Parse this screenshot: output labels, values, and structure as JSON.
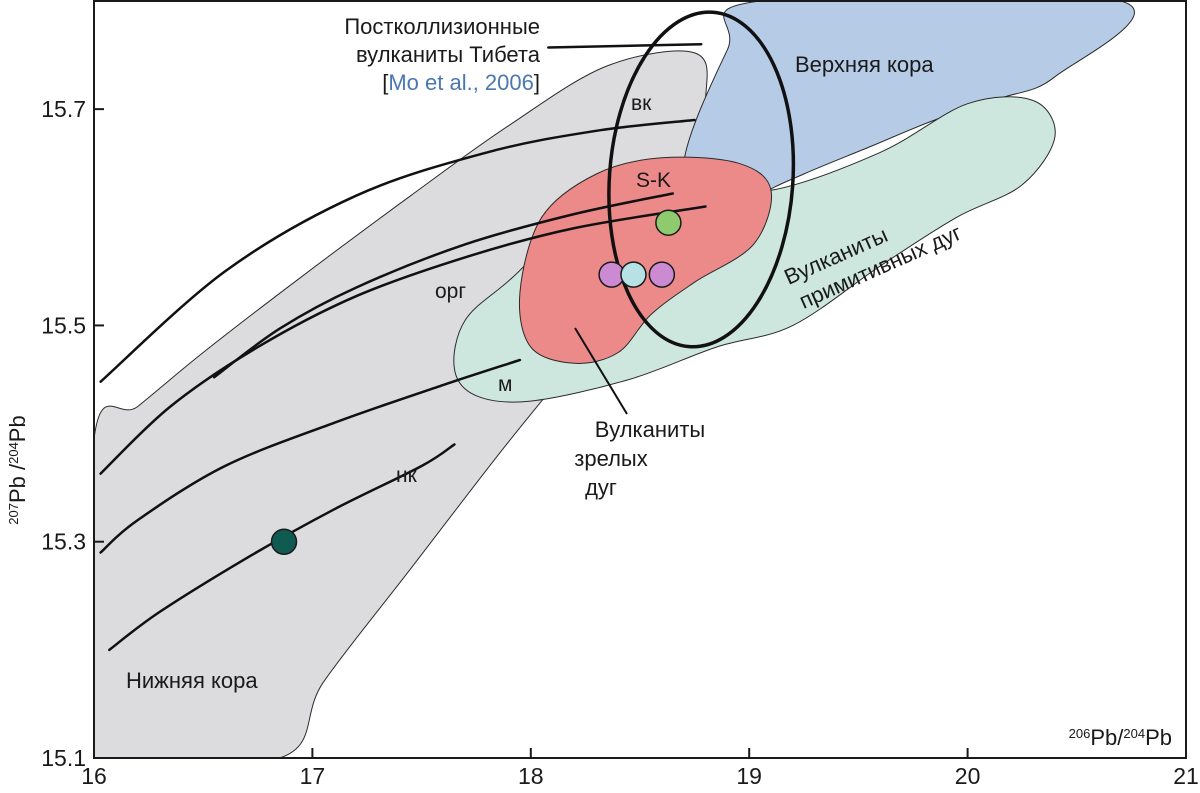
{
  "chart_data": {
    "type": "scatter",
    "xlabel": "206Pb/204Pb",
    "ylabel": "207Pb/204Pb",
    "xlim": [
      16,
      21
    ],
    "ylim": [
      15.1,
      15.8
    ],
    "x_ticks": [
      "16",
      "17",
      "18",
      "19",
      "20",
      "21"
    ],
    "y_ticks": [
      "15.1",
      "15.3",
      "15.5",
      "15.7"
    ],
    "regions": [
      {
        "name": "Нижняя кора",
        "color": "#dcdcdf",
        "outline": [
          [
            16.0,
            15.395
          ],
          [
            16.2,
            15.425
          ],
          [
            16.5,
            15.475
          ],
          [
            16.95,
            15.545
          ],
          [
            17.45,
            15.62
          ],
          [
            17.9,
            15.685
          ],
          [
            18.35,
            15.74
          ],
          [
            18.75,
            15.752
          ],
          [
            18.8,
            15.71
          ],
          [
            18.7,
            15.62
          ],
          [
            18.45,
            15.53
          ],
          [
            18.15,
            15.455
          ],
          [
            17.85,
            15.38
          ],
          [
            17.45,
            15.275
          ],
          [
            17.05,
            15.17
          ],
          [
            16.85,
            15.1
          ],
          [
            16.0,
            15.1
          ]
        ]
      },
      {
        "name": "Верхняя кора",
        "color": "#b6cbe6",
        "outline": [
          [
            18.7,
            15.65
          ],
          [
            18.9,
            15.755
          ],
          [
            19.05,
            15.8
          ],
          [
            20.7,
            15.8
          ],
          [
            20.4,
            15.73
          ],
          [
            20.15,
            15.71
          ],
          [
            19.85,
            15.69
          ],
          [
            19.55,
            15.665
          ],
          [
            19.25,
            15.64
          ],
          [
            19.05,
            15.62
          ],
          [
            18.9,
            15.59
          ],
          [
            18.8,
            15.585
          ]
        ]
      },
      {
        "name": "Вулканиты примитивных дуг",
        "color": "#cde7df",
        "outline": [
          [
            17.7,
            15.505
          ],
          [
            17.92,
            15.545
          ],
          [
            18.3,
            15.615
          ],
          [
            18.75,
            15.63
          ],
          [
            19.1,
            15.625
          ],
          [
            19.6,
            15.66
          ],
          [
            20.0,
            15.705
          ],
          [
            20.3,
            15.708
          ],
          [
            20.4,
            15.675
          ],
          [
            20.25,
            15.63
          ],
          [
            19.95,
            15.6
          ],
          [
            19.6,
            15.555
          ],
          [
            19.2,
            15.5
          ],
          [
            18.85,
            15.48
          ],
          [
            18.45,
            15.45
          ],
          [
            18.0,
            15.43
          ],
          [
            17.75,
            15.435
          ],
          [
            17.65,
            15.46
          ]
        ]
      },
      {
        "name": "Вулканиты зрелых дуг",
        "color": "#ec8a8a",
        "outline": [
          [
            17.95,
            15.53
          ],
          [
            18.05,
            15.6
          ],
          [
            18.3,
            15.64
          ],
          [
            18.6,
            15.655
          ],
          [
            18.95,
            15.65
          ],
          [
            19.1,
            15.625
          ],
          [
            19.02,
            15.575
          ],
          [
            18.75,
            15.54
          ],
          [
            18.55,
            15.51
          ],
          [
            18.4,
            15.475
          ],
          [
            18.2,
            15.465
          ],
          [
            18.0,
            15.48
          ]
        ]
      }
    ],
    "ellipse": {
      "name": "Постколлизионные вулканиты Тибета",
      "cx": 18.78,
      "cy": 15.635,
      "rx": 0.42,
      "ry": 0.155,
      "rotate_deg": 4
    },
    "curves": [
      {
        "name": "вк",
        "points": [
          [
            16.03,
            15.448
          ],
          [
            16.6,
            15.55
          ],
          [
            17.2,
            15.62
          ],
          [
            17.8,
            15.66
          ],
          [
            18.3,
            15.68
          ],
          [
            18.75,
            15.69
          ]
        ]
      },
      {
        "name": "S-K",
        "points": [
          [
            16.55,
            15.452
          ],
          [
            16.85,
            15.497
          ],
          [
            17.2,
            15.535
          ],
          [
            17.7,
            15.575
          ],
          [
            18.2,
            15.603
          ],
          [
            18.65,
            15.622
          ]
        ]
      },
      {
        "name": "орг",
        "points": [
          [
            16.03,
            15.363
          ],
          [
            16.35,
            15.425
          ],
          [
            16.75,
            15.48
          ],
          [
            17.2,
            15.527
          ],
          [
            17.7,
            15.563
          ],
          [
            18.2,
            15.59
          ],
          [
            18.8,
            15.61
          ]
        ]
      },
      {
        "name": "м",
        "points": [
          [
            16.03,
            15.29
          ],
          [
            16.2,
            15.32
          ],
          [
            16.6,
            15.37
          ],
          [
            17.1,
            15.41
          ],
          [
            17.6,
            15.445
          ],
          [
            17.95,
            15.468
          ]
        ]
      },
      {
        "name": "нк",
        "points": [
          [
            16.07,
            15.2
          ],
          [
            16.3,
            15.235
          ],
          [
            16.7,
            15.285
          ],
          [
            17.1,
            15.33
          ],
          [
            17.5,
            15.37
          ],
          [
            17.65,
            15.39
          ]
        ]
      },
      {
        "name": "Тибет-выноска",
        "points": [
          [
            18.08,
            15.757
          ],
          [
            18.78,
            15.76
          ]
        ]
      }
    ],
    "points": [
      {
        "x": 16.87,
        "y": 15.3,
        "color": "#0f5b52"
      },
      {
        "x": 18.63,
        "y": 15.595,
        "color": "#8fcb6e"
      },
      {
        "x": 18.37,
        "y": 15.547,
        "color": "#cc8ad3"
      },
      {
        "x": 18.47,
        "y": 15.547,
        "color": "#b6e2e5"
      },
      {
        "x": 18.6,
        "y": 15.547,
        "color": "#cc8ad3"
      }
    ],
    "labels": {
      "upper_crust": "Верхняя кора",
      "lower_crust": "Нижняя кора",
      "primitive_1": "Вулканиты",
      "primitive_2": "примитивных дуг",
      "mature_1": "Вулканиты",
      "mature_2": "зрелых",
      "mature_3": "дуг",
      "tibet_1": "Постколлизионные",
      "tibet_2": "вулканиты Тибета",
      "tibet_ref_open": "[",
      "tibet_ref": "Mo et al., 2006",
      "tibet_ref_close": "]",
      "curve_vk": "вк",
      "curve_sk": "S-K",
      "curve_org": "орг",
      "curve_m": "м",
      "curve_nk": "нк",
      "x_axis_num1": "206",
      "x_axis_el1": "Pb/",
      "x_axis_num2": "204",
      "x_axis_el2": "Pb",
      "y_axis_num1": "207",
      "y_axis_el1": "Pb /",
      "y_axis_num2": "204",
      "y_axis_el2": "Pb"
    },
    "colors": {
      "reference_link": "#4a78b0",
      "curve": "#111111",
      "axis": "#1a1a1a"
    },
    "grid": false,
    "legend": "none"
  }
}
